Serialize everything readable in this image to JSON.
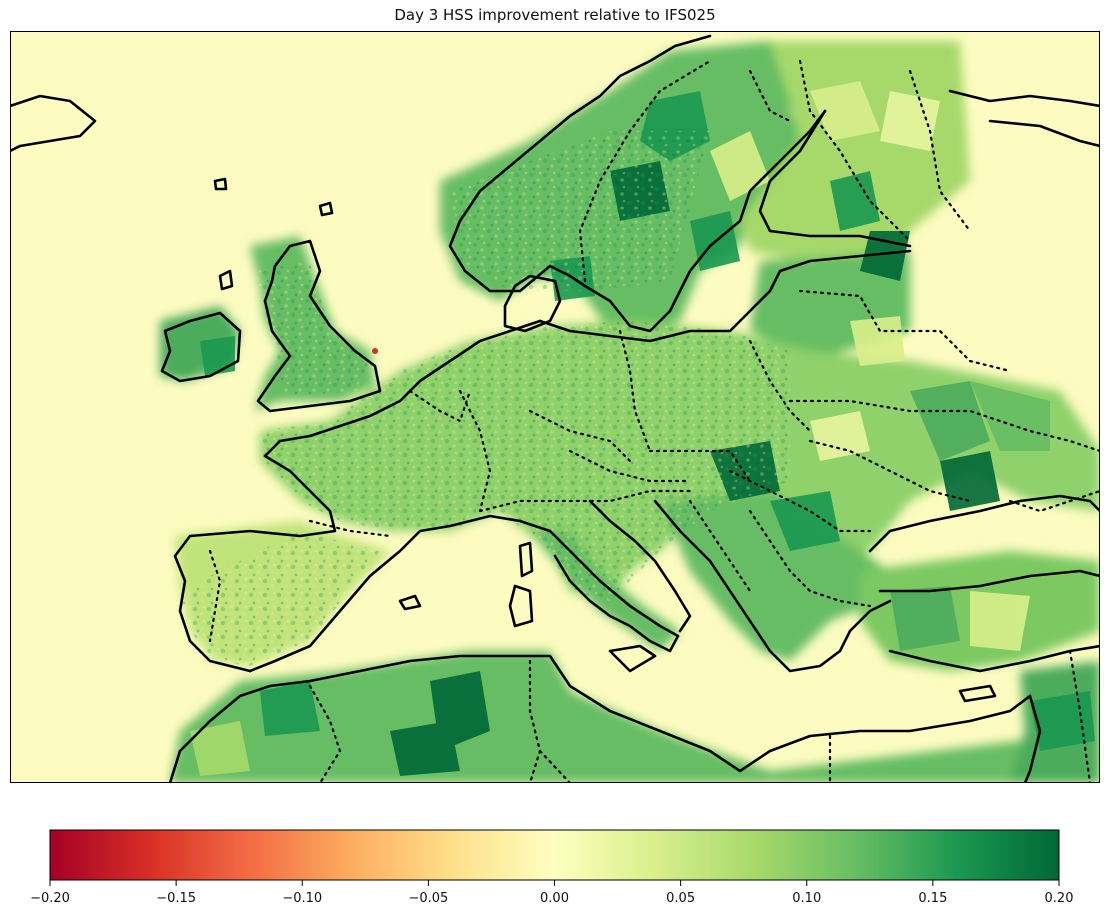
{
  "title": "Day 3 HSS improvement relative to IFS025",
  "colorbar": {
    "min": -0.2,
    "max": 0.2,
    "colormap": "RdYlGn",
    "colors": [
      "#a50026",
      "#d73027",
      "#f46d43",
      "#fdae61",
      "#fee08b",
      "#ffffbf",
      "#d9ef8b",
      "#a6d96a",
      "#66bd63",
      "#1a9850",
      "#006837"
    ],
    "ticks": [
      {
        "value": -0.2,
        "label": "−0.20"
      },
      {
        "value": -0.15,
        "label": "−0.15"
      },
      {
        "value": -0.1,
        "label": "−0.10"
      },
      {
        "value": -0.05,
        "label": "−0.05"
      },
      {
        "value": 0.0,
        "label": "0.00"
      },
      {
        "value": 0.05,
        "label": "0.05"
      },
      {
        "value": 0.1,
        "label": "0.10"
      },
      {
        "value": 0.15,
        "label": "0.15"
      },
      {
        "value": 0.2,
        "label": "0.20"
      }
    ]
  },
  "map": {
    "background_color": "#fcfbc0",
    "land_fill": "#a6d96a",
    "coastline_color": "#000000",
    "border_style": "dotted"
  }
}
